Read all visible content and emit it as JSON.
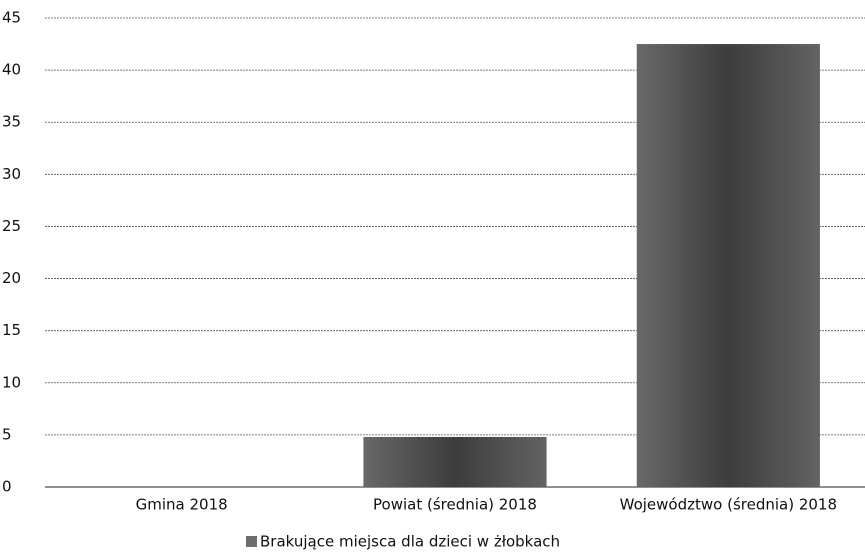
{
  "chart_data": {
    "type": "bar",
    "categories": [
      "Gmina 2018",
      "Powiat (średnia) 2018",
      "Województwo (średnia) 2018"
    ],
    "series": [
      {
        "name": "Brakujące miejsca dla dzieci w żłobkach",
        "color": "#6e6e6e",
        "values": [
          0,
          4.8,
          42.5
        ]
      }
    ],
    "ylim": [
      0,
      45
    ],
    "yticks": [
      0,
      5,
      10,
      15,
      20,
      25,
      30,
      35,
      40,
      45
    ],
    "grid": true,
    "legend": "bottom"
  }
}
